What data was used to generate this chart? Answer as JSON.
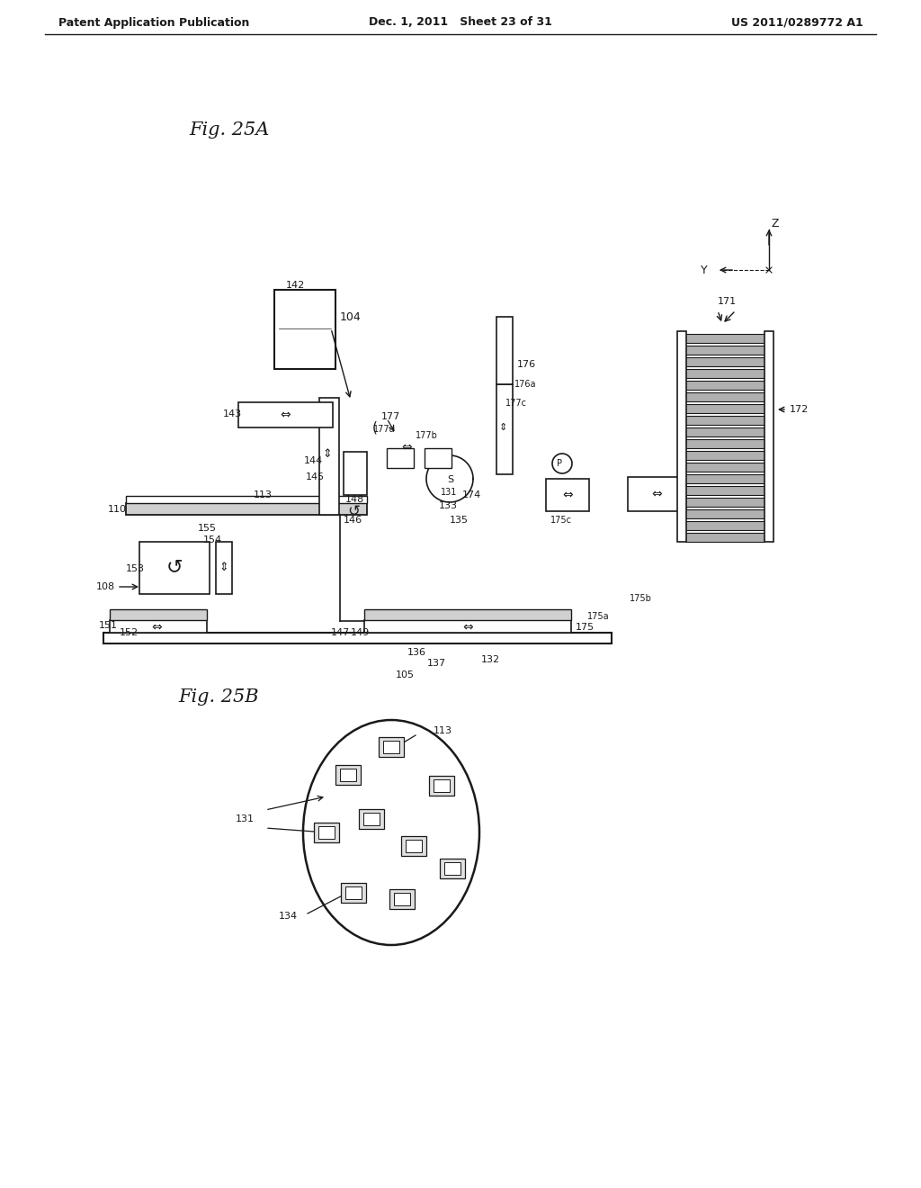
{
  "bg_color": "#ffffff",
  "text_color": "#1a1a1a",
  "line_color": "#1a1a1a",
  "header_left": "Patent Application Publication",
  "header_mid": "Dec. 1, 2011   Sheet 23 of 31",
  "header_right": "US 2011/0289772 A1",
  "fig_title_A": "Fig. 25A",
  "fig_title_B": "Fig. 25B",
  "fig_width": 10.24,
  "fig_height": 13.2,
  "dpi": 100
}
